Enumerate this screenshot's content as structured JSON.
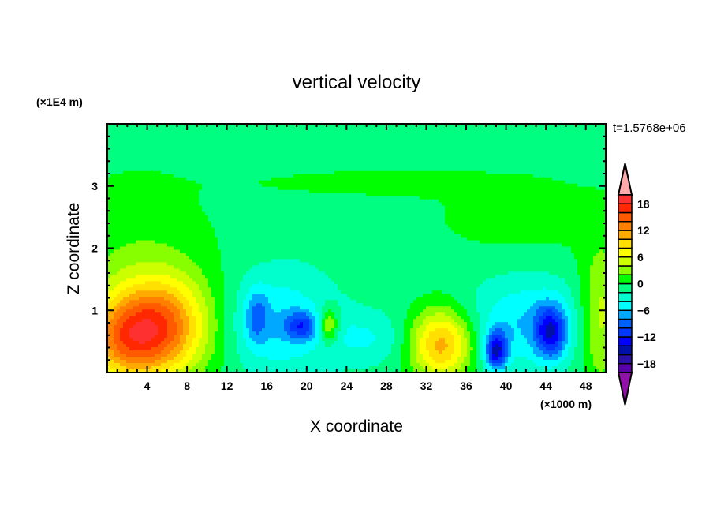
{
  "chart_data": {
    "type": "heatmap",
    "title": "vertical velocity",
    "xlabel": "X coordinate",
    "ylabel": "Z coordinate",
    "x_unit": "(×1000 m)",
    "y_unit": "(×1E4 m)",
    "time_label": "t=1.5768e+06",
    "xlim": [
      0,
      50
    ],
    "ylim": [
      0,
      4
    ],
    "x_ticks": [
      4,
      8,
      12,
      16,
      20,
      24,
      28,
      32,
      36,
      40,
      44,
      48
    ],
    "x_tick_labels": [
      "4",
      "8",
      "12",
      "16",
      "20",
      "24",
      "28",
      "32",
      "36",
      "40",
      "44",
      "48"
    ],
    "y_ticks": [
      1,
      2,
      3
    ],
    "y_tick_labels": [
      "1",
      "2",
      "3"
    ],
    "levels": [
      -20,
      -18,
      -16,
      -14,
      -12,
      -10,
      -8,
      -6,
      -4,
      -2,
      0,
      2,
      4,
      6,
      8,
      10,
      12,
      14,
      16,
      18,
      20
    ],
    "colors": [
      "#5a00a8",
      "#2a10a8",
      "#0010a8",
      "#0000ff",
      "#0038ff",
      "#0060ff",
      "#00a8ff",
      "#00ffff",
      "#00ffcc",
      "#00ff80",
      "#00ff00",
      "#88ff00",
      "#ccff00",
      "#ffff00",
      "#ffe000",
      "#ffaa00",
      "#ff8000",
      "#ff5a00",
      "#ff2800",
      "#ff3030"
    ],
    "over_color": "#ffaaaa",
    "under_color": "#9010a8",
    "colorbar_labels": [
      {
        "value": 18,
        "text": "18"
      },
      {
        "value": 12,
        "text": "12"
      },
      {
        "value": 6,
        "text": "6"
      },
      {
        "value": 0,
        "text": "0"
      },
      {
        "value": -6,
        "text": "−6"
      },
      {
        "value": -12,
        "text": "−12"
      },
      {
        "value": -18,
        "text": "−18"
      }
    ],
    "field": {
      "base": -1,
      "features": [
        {
          "x": 3,
          "z": 1.3,
          "amp": 3,
          "sx": 6,
          "sz": 1.3
        },
        {
          "x": 5.2,
          "z": 0.75,
          "amp": 13,
          "sx": 3.5,
          "sz": 0.55
        },
        {
          "x": 1.5,
          "z": 0.5,
          "amp": 8,
          "sx": 3,
          "sz": 0.45
        },
        {
          "x": 22.2,
          "z": 0.75,
          "amp": 8,
          "sx": 0.7,
          "sz": 0.2
        },
        {
          "x": 33.5,
          "z": 0.45,
          "amp": 12,
          "sx": 2.2,
          "sz": 0.4
        },
        {
          "x": 17,
          "z": 0.8,
          "amp": -5,
          "sx": 4,
          "sz": 0.6
        },
        {
          "x": 19.5,
          "z": 0.75,
          "amp": -7,
          "sx": 1.2,
          "sz": 0.15
        },
        {
          "x": 15,
          "z": 0.9,
          "amp": -5,
          "sx": 0.8,
          "sz": 0.3
        },
        {
          "x": 39,
          "z": 0.35,
          "amp": -12,
          "sx": 0.8,
          "sz": 0.22
        },
        {
          "x": 44.5,
          "z": 0.65,
          "amp": -10,
          "sx": 1.1,
          "sz": 0.3
        },
        {
          "x": 42,
          "z": 0.8,
          "amp": -5,
          "sx": 4,
          "sz": 0.5
        },
        {
          "x": 26,
          "z": 0.55,
          "amp": -3,
          "sx": 3,
          "sz": 0.3
        },
        {
          "x": 49.5,
          "z": 0.9,
          "amp": 6,
          "sx": 1.5,
          "sz": 0.8
        },
        {
          "x": 27,
          "z": 3.05,
          "amp": 2,
          "sx": 9,
          "sz": 0.15
        },
        {
          "x": 42,
          "z": 2.5,
          "amp": 2,
          "sx": 7,
          "sz": 0.45
        }
      ]
    }
  }
}
